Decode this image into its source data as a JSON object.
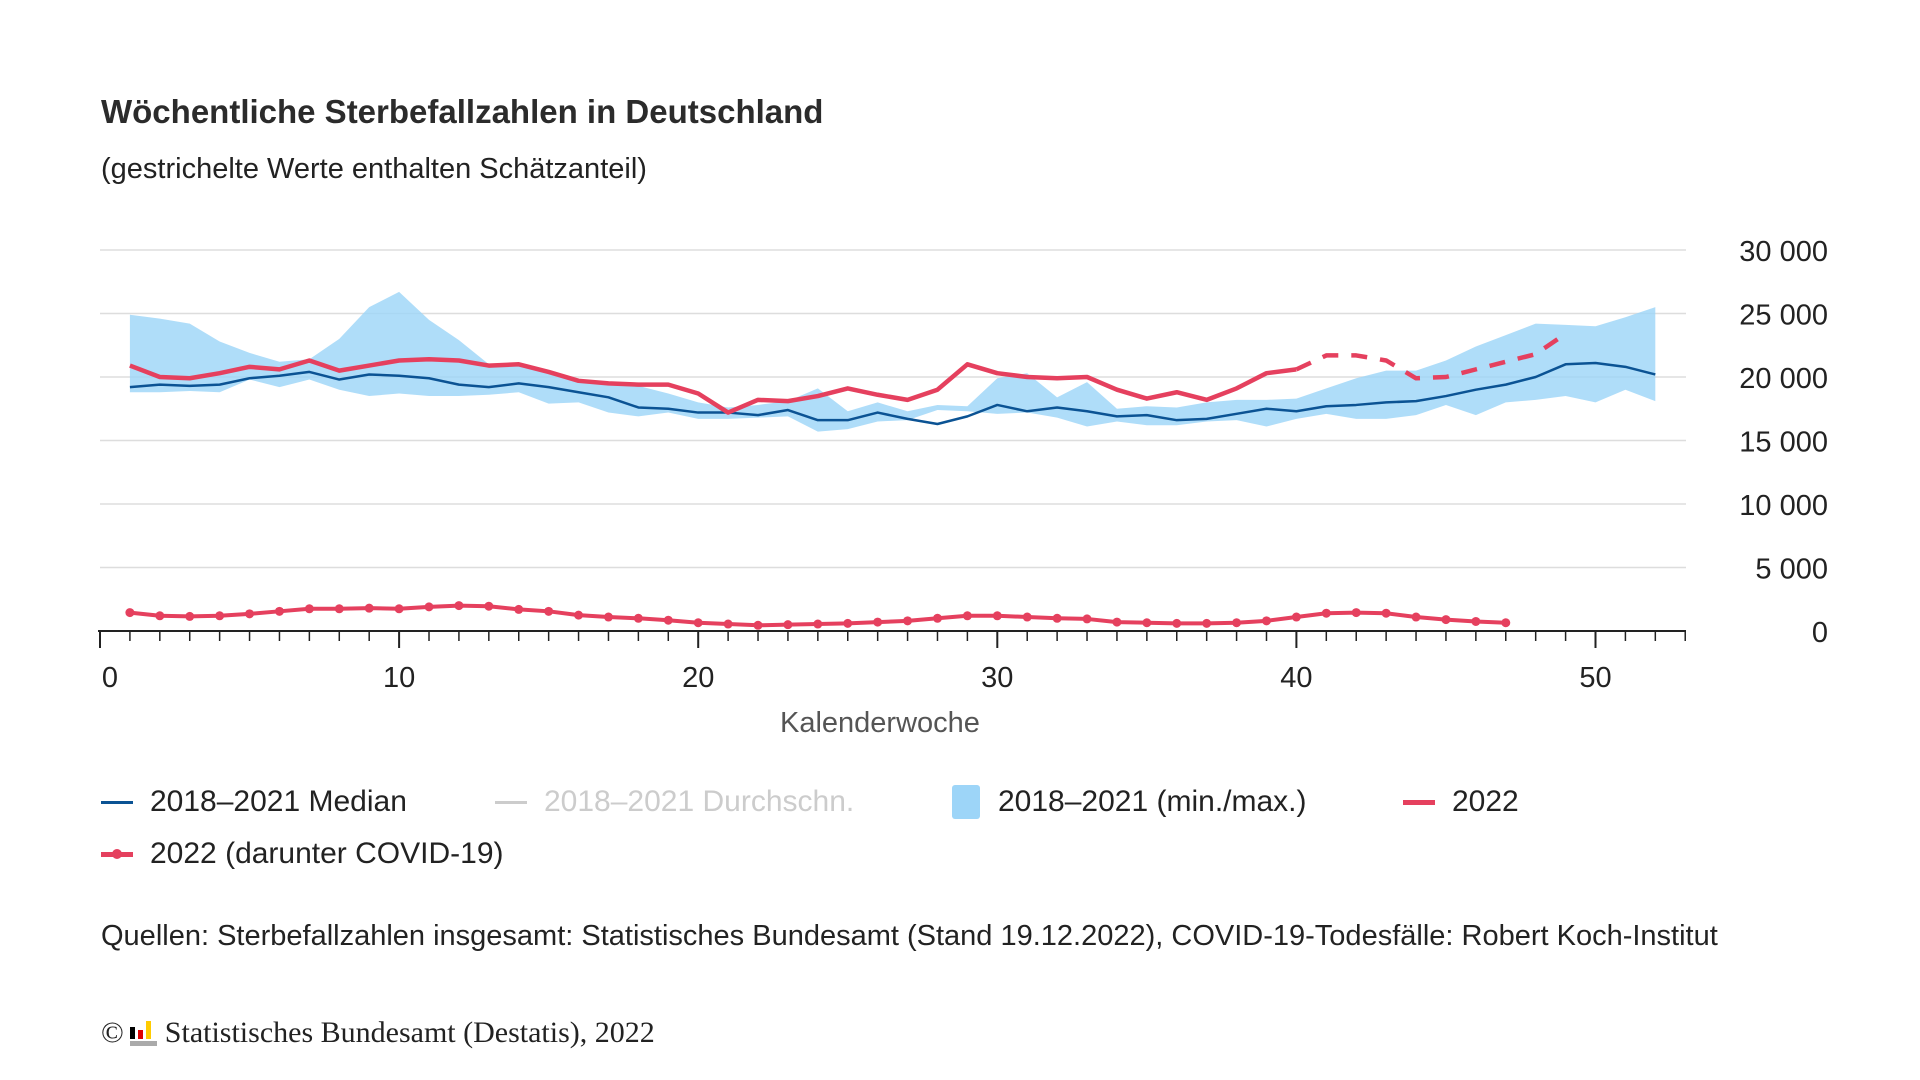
{
  "chart_data": {
    "type": "line",
    "title": "Wöchentliche Sterbefallzahlen in Deutschland",
    "subtitle": "(gestrichelte Werte enthalten Schätzanteil)",
    "xlabel": "Kalenderwoche",
    "ylabel": "",
    "xlim": [
      0,
      53
    ],
    "ylim": [
      0,
      30000
    ],
    "x_ticks": [
      0,
      10,
      20,
      30,
      40,
      50
    ],
    "x_tick_labels": [
      "0",
      "10",
      "20",
      "30",
      "40",
      "50"
    ],
    "y_ticks": [
      0,
      5000,
      10000,
      15000,
      20000,
      25000,
      30000
    ],
    "y_tick_labels": [
      "0",
      "5 000",
      "10 000",
      "15 000",
      "20 000",
      "25 000",
      "30 000"
    ],
    "y_axis_side": "right",
    "grid": true,
    "legend_position": "bottom",
    "weeks": [
      1,
      2,
      3,
      4,
      5,
      6,
      7,
      8,
      9,
      10,
      11,
      12,
      13,
      14,
      15,
      16,
      17,
      18,
      19,
      20,
      21,
      22,
      23,
      24,
      25,
      26,
      27,
      28,
      29,
      30,
      31,
      32,
      33,
      34,
      35,
      36,
      37,
      38,
      39,
      40,
      41,
      42,
      43,
      44,
      45,
      46,
      47,
      48,
      49,
      50,
      51,
      52
    ],
    "series": [
      {
        "name": "2018–2021 (min./max.)",
        "kind": "band",
        "color": "#9dd5f8",
        "min": [
          18800,
          18800,
          18900,
          18800,
          19800,
          19200,
          19800,
          19000,
          18500,
          18700,
          18500,
          18500,
          18600,
          18800,
          17900,
          18000,
          17200,
          16900,
          17200,
          16700,
          16700,
          16800,
          16900,
          15700,
          15900,
          16500,
          16600,
          17400,
          17300,
          17100,
          17200,
          16800,
          16100,
          16500,
          16200,
          16200,
          16500,
          16600,
          16100,
          16700,
          17100,
          16700,
          16700,
          17000,
          17800,
          17000,
          18000,
          18200,
          18500,
          18000,
          19000,
          18100
        ],
        "max": [
          24900,
          24600,
          24200,
          22800,
          21900,
          21200,
          21400,
          23000,
          25500,
          26700,
          24500,
          22900,
          21000,
          21000,
          20500,
          19800,
          19500,
          19300,
          18700,
          18000,
          17600,
          17800,
          18100,
          19100,
          17300,
          18000,
          17300,
          17800,
          17700,
          19900,
          20300,
          18400,
          19600,
          17500,
          17700,
          17600,
          18000,
          18200,
          18200,
          18300,
          19100,
          19900,
          20500,
          20500,
          21300,
          22400,
          23300,
          24200,
          24100,
          24000,
          24700,
          25500
        ]
      },
      {
        "name": "2018–2021 Median",
        "kind": "line",
        "color": "#0b5394",
        "values": [
          19200,
          19400,
          19300,
          19400,
          19900,
          20100,
          20400,
          19800,
          20200,
          20100,
          19900,
          19400,
          19200,
          19500,
          19200,
          18800,
          18400,
          17600,
          17500,
          17200,
          17200,
          17000,
          17400,
          16600,
          16600,
          17200,
          16700,
          16300,
          16900,
          17800,
          17300,
          17600,
          17300,
          16900,
          17000,
          16600,
          16700,
          17100,
          17500,
          17300,
          17700,
          17800,
          18000,
          18100,
          18500,
          19000,
          19400,
          20000,
          21000,
          21100,
          20800,
          20200
        ]
      },
      {
        "name": "2018–2021 Durchschn.",
        "kind": "line",
        "hidden": true,
        "color": "#c8c8c8",
        "values": []
      },
      {
        "name": "2022",
        "kind": "line",
        "color": "#e5405e",
        "values": [
          20900,
          20000,
          19900,
          20300,
          20800,
          20600,
          21300,
          20500,
          20900,
          21300,
          21400,
          21300,
          20900,
          21000,
          20400,
          19700,
          19500,
          19400,
          19400,
          18700,
          17200,
          18200,
          18100,
          18500,
          19100,
          18600,
          18200,
          19000,
          21000,
          20300,
          20000,
          19900,
          20000,
          19000,
          18300,
          18800,
          18200,
          19100,
          20300,
          20600,
          21700,
          21700,
          21300,
          19900,
          20000,
          20600,
          21200,
          21800,
          23400
        ],
        "estimated_from_week": 40
      },
      {
        "name": "2022 (darunter COVID-19)",
        "kind": "line-markers",
        "color": "#e5405e",
        "values": [
          1450,
          1200,
          1150,
          1200,
          1350,
          1550,
          1750,
          1750,
          1800,
          1750,
          1900,
          2000,
          1950,
          1700,
          1550,
          1250,
          1100,
          1000,
          850,
          650,
          550,
          450,
          500,
          550,
          600,
          700,
          800,
          1000,
          1200,
          1200,
          1100,
          1000,
          950,
          700,
          650,
          600,
          600,
          650,
          800,
          1100,
          1400,
          1450,
          1400,
          1100,
          900,
          750,
          650
        ]
      }
    ]
  },
  "legend": [
    {
      "label": "2018–2021 Median",
      "swatch": "line",
      "color": "#0b5394",
      "muted": false
    },
    {
      "label": "2018–2021 Durchschn.",
      "swatch": "line",
      "color": "#cccccc",
      "muted": true
    },
    {
      "label": "2018–2021 (min./max.)",
      "swatch": "box",
      "color": "#9dd5f8",
      "muted": false
    },
    {
      "label": "2022",
      "swatch": "thick-line",
      "color": "#e5405e",
      "muted": false
    },
    {
      "label": "2022 (darunter COVID-19)",
      "swatch": "line-dot",
      "color": "#e5405e",
      "muted": false
    }
  ],
  "source": "Quellen: Sterbefallzahlen insgesamt: Statistisches Bundesamt (Stand 19.12.2022), COVID-19-Todesfälle: Robert Koch-Institut",
  "footer": {
    "copyright": "©",
    "publisher": "Statistisches Bundesamt (Destatis), 2022",
    "logo_colors": [
      "#000000",
      "#dd0000",
      "#ffcc00"
    ]
  }
}
